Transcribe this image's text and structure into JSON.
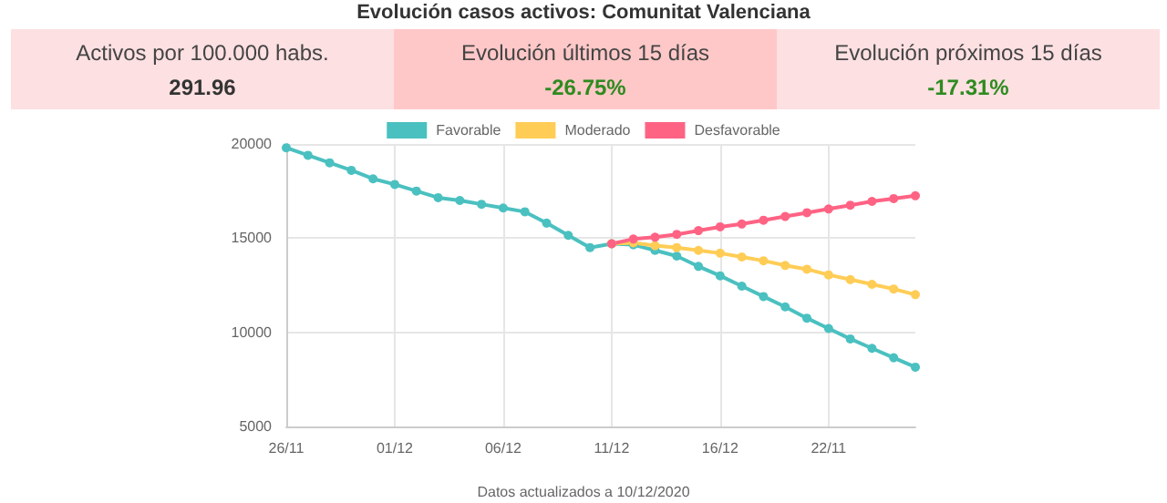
{
  "chart_data": [
    {
      "type": "other",
      "title": "Activos por 100.000 habs.",
      "annotations": [
        "291.96"
      ]
    },
    {
      "type": "other",
      "title": "Evolución últimos 15 días",
      "annotations": [
        "-26.75%"
      ]
    },
    {
      "type": "other",
      "title": "Evolución próximos 15 días",
      "annotations": [
        "-17.31%"
      ]
    },
    {
      "type": "line",
      "title": "Evolución casos activos: Comunitat Valenciana",
      "categories": [
        "26/11",
        null,
        null,
        null,
        null,
        "01/12",
        null,
        null,
        null,
        null,
        "06/12",
        null,
        null,
        null,
        null,
        "11/12",
        null,
        null,
        null,
        null,
        "16/12",
        null,
        null,
        null,
        null,
        "22/11",
        null,
        null,
        null,
        null
      ],
      "series": [
        {
          "name": "Favorable",
          "color": "#4bc0c0",
          "values": [
            19800,
            19400,
            19000,
            18600,
            18150,
            17850,
            17500,
            17150,
            17000,
            16800,
            16600,
            16400,
            15800,
            15150,
            14500,
            14700,
            14650,
            14350,
            14050,
            13500,
            13000,
            12450,
            11900,
            11350,
            10750,
            10200,
            9650,
            9150,
            8650,
            8150
          ]
        },
        {
          "name": "Moderado",
          "color": "#ffcd56",
          "values": [
            null,
            null,
            null,
            null,
            null,
            null,
            null,
            null,
            null,
            null,
            null,
            null,
            null,
            null,
            null,
            14700,
            14750,
            14600,
            14500,
            14350,
            14200,
            14000,
            13800,
            13550,
            13350,
            13050,
            12800,
            12550,
            12300,
            12000
          ]
        },
        {
          "name": "Desfavorable",
          "color": "#ff6384",
          "values": [
            null,
            null,
            null,
            null,
            null,
            null,
            null,
            null,
            null,
            null,
            null,
            null,
            null,
            null,
            null,
            14700,
            14950,
            15050,
            15200,
            15400,
            15600,
            15750,
            15950,
            16150,
            16350,
            16550,
            16750,
            16950,
            17100,
            17250
          ]
        }
      ],
      "ylim": [
        5000,
        20000
      ],
      "yticks": [
        5000,
        10000,
        15000,
        20000
      ],
      "grid": true,
      "legend": "top",
      "marker": "circle",
      "line_style": "solid",
      "annotations": [
        "Datos actualizados a 10/12/2020"
      ]
    }
  ]
}
